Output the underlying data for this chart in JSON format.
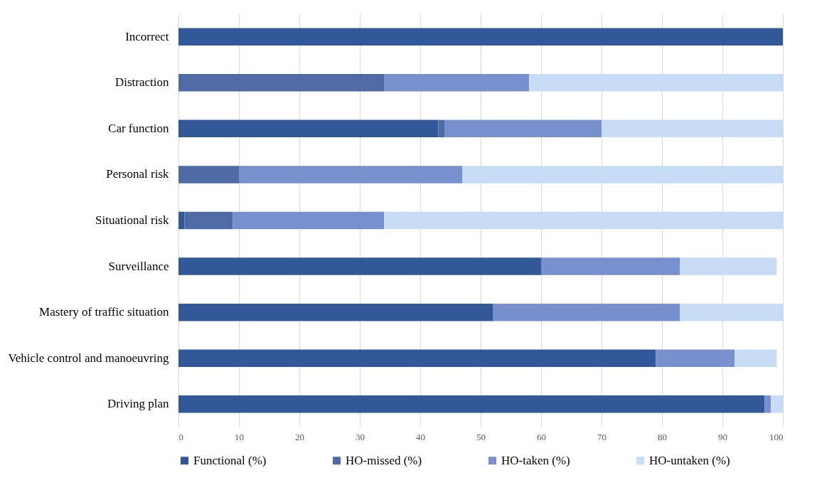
{
  "chart_data": {
    "type": "bar",
    "orientation": "horizontal",
    "stacked": true,
    "categories": [
      "Incorrect",
      "Distraction",
      "Car function",
      "Personal risk",
      "Situational risk",
      "Surveillance",
      "Mastery of traffic situation",
      "Vehicle control and manoeuvring",
      "Driving plan"
    ],
    "series": [
      {
        "name": "Functional (%)",
        "color": "#335899",
        "values": [
          100,
          0,
          43,
          0,
          1,
          60,
          52,
          79,
          97
        ]
      },
      {
        "name": "HO-missed (%)",
        "color": "#4f6ba6",
        "values": [
          0,
          34,
          1,
          10,
          8,
          0,
          0,
          0,
          0
        ]
      },
      {
        "name": "HO-taken (%)",
        "color": "#7990cf",
        "values": [
          0,
          24,
          26,
          37,
          25,
          23,
          31,
          13,
          1
        ]
      },
      {
        "name": "HO-untaken (%)",
        "color": "#c7dcf5",
        "values": [
          0,
          42,
          30,
          53,
          66,
          16,
          17,
          7,
          2
        ]
      }
    ],
    "xlim": [
      0,
      100
    ],
    "xticks": [
      0,
      10,
      20,
      30,
      40,
      50,
      60,
      70,
      80,
      90,
      100
    ],
    "grid": "x",
    "legend": "bottom"
  }
}
